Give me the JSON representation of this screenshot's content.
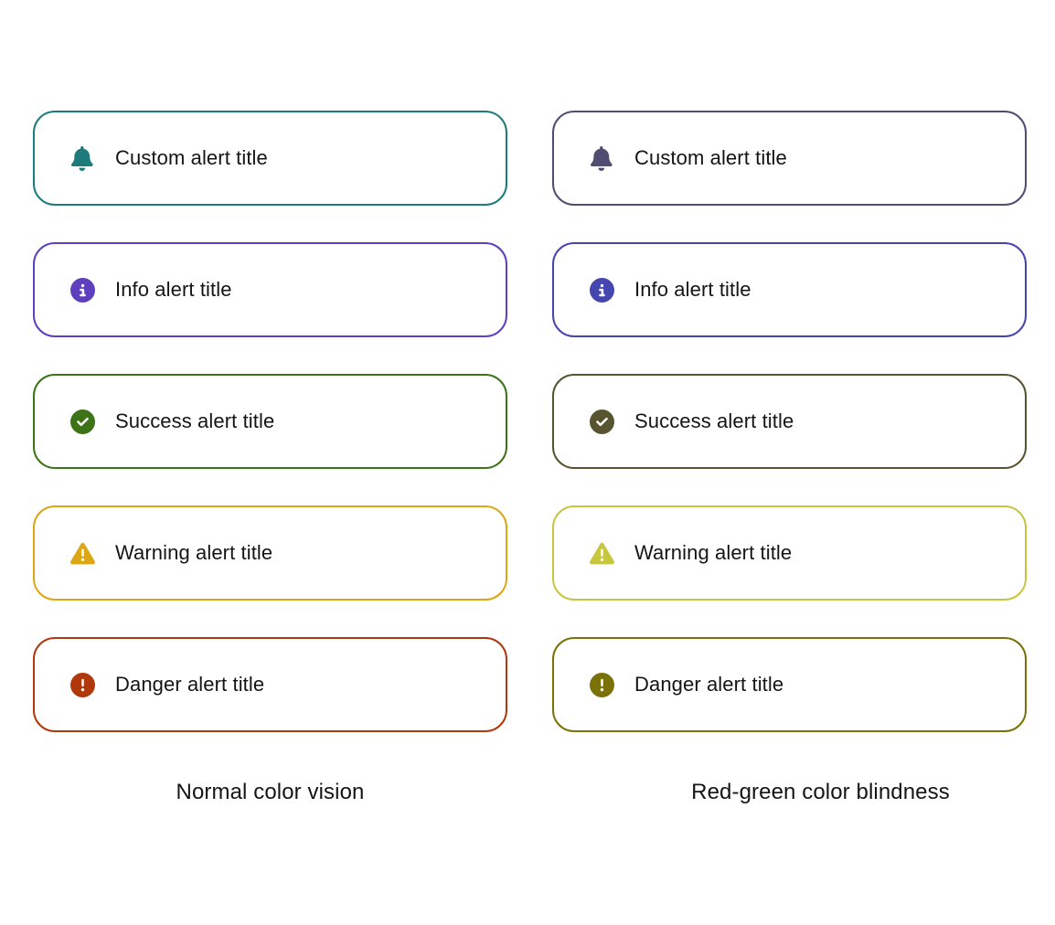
{
  "figure": {
    "description": "Alert color comparison",
    "text_color": "#151515",
    "background": "#ffffff"
  },
  "columns": [
    {
      "id": "normal-color-vision",
      "caption": "Normal color vision",
      "alerts": [
        {
          "variant": "custom",
          "title": "Custom alert title",
          "icon": "bell-icon",
          "color": "#1e7b7b"
        },
        {
          "variant": "info",
          "title": "Info alert title",
          "icon": "info-circle-icon",
          "color": "#5e40be"
        },
        {
          "variant": "success",
          "title": "Success alert title",
          "icon": "check-circle-icon",
          "color": "#3d7317"
        },
        {
          "variant": "warning",
          "title": "Warning alert title",
          "icon": "warning-triangle-icon",
          "color": "#dca614"
        },
        {
          "variant": "danger",
          "title": "Danger alert title",
          "icon": "exclamation-circle-icon",
          "color": "#b1380b"
        }
      ]
    },
    {
      "id": "red-green-color-blindness",
      "caption": "Red-green color blindness",
      "alerts": [
        {
          "variant": "custom",
          "title": "Custom alert title",
          "icon": "bell-icon",
          "color": "#4f4d71"
        },
        {
          "variant": "info",
          "title": "Info alert title",
          "icon": "info-circle-icon",
          "color": "#4646b0"
        },
        {
          "variant": "success",
          "title": "Success alert title",
          "icon": "check-circle-icon",
          "color": "#575531"
        },
        {
          "variant": "warning",
          "title": "Warning alert title",
          "icon": "warning-triangle-icon",
          "color": "#c8c63f"
        },
        {
          "variant": "danger",
          "title": "Danger alert title",
          "icon": "exclamation-circle-icon",
          "color": "#7a7208"
        }
      ]
    }
  ]
}
